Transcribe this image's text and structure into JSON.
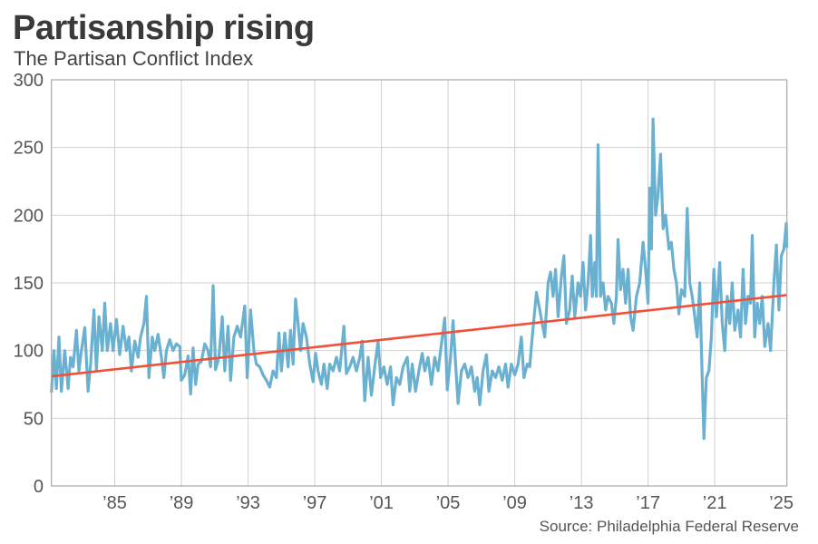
{
  "chart_data": {
    "type": "line",
    "title": "Partisanship rising",
    "subtitle": "The Partisan Conflict Index",
    "source": "Source: Philadelphia Federal Reserve",
    "xlabel": "",
    "ylabel": "",
    "xlim": [
      1981.2,
      2025.33
    ],
    "ylim": [
      0,
      300
    ],
    "grid": true,
    "legend": "none",
    "y_ticks": [
      0,
      50,
      100,
      150,
      200,
      250,
      300
    ],
    "x_ticks": [
      {
        "value": 1985,
        "label": "’85"
      },
      {
        "value": 1989,
        "label": "’89"
      },
      {
        "value": 1993,
        "label": "’93"
      },
      {
        "value": 1997,
        "label": "’97"
      },
      {
        "value": 2001,
        "label": "’01"
      },
      {
        "value": 2005,
        "label": "’05"
      },
      {
        "value": 2009,
        "label": "’09"
      },
      {
        "value": 2013,
        "label": "’13"
      },
      {
        "value": 2017,
        "label": "’17"
      },
      {
        "value": 2021,
        "label": "’21"
      },
      {
        "value": 2025,
        "label": "’25"
      }
    ],
    "colors": {
      "index": "#6ab0d0",
      "trend": "#f0503a"
    },
    "trend": {
      "x": [
        1981.2,
        2025.33
      ],
      "y": [
        81,
        141
      ]
    },
    "series": [
      {
        "x": [
          1981.2,
          1981.35,
          1981.5,
          1981.65,
          1981.8,
          1982.0,
          1982.2,
          1982.35,
          1982.5,
          1982.7,
          1982.85,
          1983.0,
          1983.2,
          1983.4,
          1983.55,
          1983.75,
          1983.9,
          1984.05,
          1984.25,
          1984.4,
          1984.55,
          1984.75,
          1984.9,
          1985.1,
          1985.3,
          1985.5,
          1985.7,
          1985.85,
          1986.0,
          1986.2,
          1986.4,
          1986.55,
          1986.75,
          1986.9,
          1987.05,
          1987.25,
          1987.4,
          1987.6,
          1987.8,
          1987.95,
          1988.1,
          1988.3,
          1988.5,
          1988.7,
          1988.9,
          1989.0,
          1989.2,
          1989.4,
          1989.55,
          1989.7,
          1989.85,
          1990.0,
          1990.2,
          1990.4,
          1990.6,
          1990.75,
          1990.9,
          1991.05,
          1991.25,
          1991.45,
          1991.6,
          1991.8,
          1991.95,
          1992.15,
          1992.35,
          1992.55,
          1992.8,
          1992.95,
          1993.15,
          1993.35,
          1993.5,
          1993.7,
          1993.9,
          1994.1,
          1994.3,
          1994.5,
          1994.7,
          1994.85,
          1995.0,
          1995.2,
          1995.4,
          1995.55,
          1995.7,
          1995.85,
          1996.0,
          1996.15,
          1996.3,
          1996.5,
          1996.7,
          1996.9,
          1997.05,
          1997.2,
          1997.4,
          1997.55,
          1997.75,
          1997.9,
          1998.1,
          1998.3,
          1998.5,
          1998.75,
          1998.9,
          1999.1,
          1999.3,
          1999.5,
          1999.7,
          1999.85,
          2000.0,
          2000.2,
          2000.4,
          2000.6,
          2000.8,
          2000.95,
          2001.15,
          2001.35,
          2001.55,
          2001.7,
          2001.9,
          2002.1,
          2002.3,
          2002.55,
          2002.7,
          2002.85,
          2003.05,
          2003.25,
          2003.45,
          2003.6,
          2003.8,
          2004.0,
          2004.2,
          2004.4,
          2004.55,
          2004.8,
          2004.95,
          2005.15,
          2005.3,
          2005.45,
          2005.6,
          2005.8,
          2006.0,
          2006.2,
          2006.4,
          2006.6,
          2006.75,
          2006.9,
          2007.1,
          2007.3,
          2007.45,
          2007.65,
          2007.85,
          2008.05,
          2008.25,
          2008.45,
          2008.6,
          2008.8,
          2009.0,
          2009.2,
          2009.4,
          2009.55,
          2009.75,
          2009.9,
          2010.05,
          2010.3,
          2010.5,
          2010.65,
          2010.8,
          2011.0,
          2011.15,
          2011.3,
          2011.45,
          2011.6,
          2011.8,
          2011.95,
          2012.1,
          2012.3,
          2012.45,
          2012.6,
          2012.8,
          2012.95,
          2013.1,
          2013.25,
          2013.4,
          2013.55,
          2013.65,
          2013.8,
          2013.9,
          2014.0,
          2014.15,
          2014.3,
          2014.45,
          2014.6,
          2014.8,
          2014.95,
          2015.1,
          2015.2,
          2015.35,
          2015.5,
          2015.65,
          2015.8,
          2015.95,
          2016.1,
          2016.3,
          2016.5,
          2016.7,
          2016.85,
          2017.0,
          2017.1,
          2017.2,
          2017.3,
          2017.45,
          2017.6,
          2017.75,
          2017.9,
          2018.05,
          2018.25,
          2018.4,
          2018.55,
          2018.7,
          2018.85,
          2019.0,
          2019.2,
          2019.35,
          2019.5,
          2019.65,
          2019.8,
          2019.95,
          2020.1,
          2020.25,
          2020.35,
          2020.5,
          2020.65,
          2020.8,
          2020.95,
          2021.1,
          2021.3,
          2021.45,
          2021.6,
          2021.75,
          2021.9,
          2022.05,
          2022.2,
          2022.4,
          2022.55,
          2022.7,
          2022.85,
          2023.0,
          2023.15,
          2023.25,
          2023.4,
          2023.55,
          2023.7,
          2023.85,
          2024.0,
          2024.2,
          2024.35,
          2024.55,
          2024.7,
          2024.85,
          2025.0,
          2025.15,
          2025.3,
          2025.33
        ],
        "y": [
          69,
          100,
          72,
          110,
          70,
          100,
          72,
          95,
          88,
          115,
          85,
          100,
          117,
          70,
          90,
          130,
          85,
          125,
          100,
          135,
          100,
          120,
          100,
          123,
          97,
          118,
          100,
          110,
          85,
          107,
          95,
          110,
          120,
          140,
          80,
          110,
          100,
          112,
          95,
          80,
          100,
          108,
          100,
          105,
          103,
          78,
          82,
          96,
          68,
          102,
          75,
          90,
          92,
          105,
          100,
          88,
          148,
          86,
          95,
          125,
          85,
          118,
          78,
          110,
          118,
          110,
          133,
          80,
          130,
          100,
          90,
          88,
          82,
          78,
          73,
          85,
          80,
          113,
          85,
          113,
          88,
          115,
          90,
          138,
          120,
          100,
          120,
          110,
          90,
          77,
          98,
          85,
          75,
          90,
          72,
          90,
          85,
          95,
          85,
          118,
          83,
          88,
          95,
          85,
          95,
          107,
          63,
          95,
          67,
          88,
          107,
          80,
          88,
          75,
          88,
          60,
          80,
          75,
          88,
          95,
          70,
          90,
          70,
          85,
          98,
          85,
          95,
          75,
          95,
          85,
          100,
          124,
          71,
          95,
          122,
          90,
          61,
          85,
          90,
          80,
          88,
          70,
          80,
          60,
          85,
          97,
          70,
          85,
          80,
          88,
          78,
          90,
          73,
          90,
          82,
          90,
          110,
          80,
          90,
          88,
          110,
          143,
          130,
          120,
          110,
          150,
          158,
          140,
          160,
          125,
          155,
          170,
          120,
          130,
          155,
          125,
          150,
          140,
          165,
          130,
          150,
          185,
          140,
          165,
          140,
          252,
          140,
          150,
          130,
          140,
          135,
          120,
          140,
          182,
          145,
          160,
          135,
          160,
          125,
          115,
          140,
          150,
          180,
          160,
          135,
          220,
          175,
          271,
          200,
          215,
          245,
          190,
          200,
          175,
          180,
          160,
          150,
          127,
          145,
          140,
          205,
          150,
          140,
          125,
          110,
          150,
          80,
          35,
          80,
          85,
          110,
          160,
          125,
          165,
          120,
          100,
          140,
          120,
          150,
          115,
          130,
          110,
          160,
          120,
          140,
          135,
          185,
          110,
          135,
          120,
          140,
          103,
          120,
          100,
          150,
          178,
          130,
          170,
          175,
          194,
          176
        ]
      }
    ]
  }
}
